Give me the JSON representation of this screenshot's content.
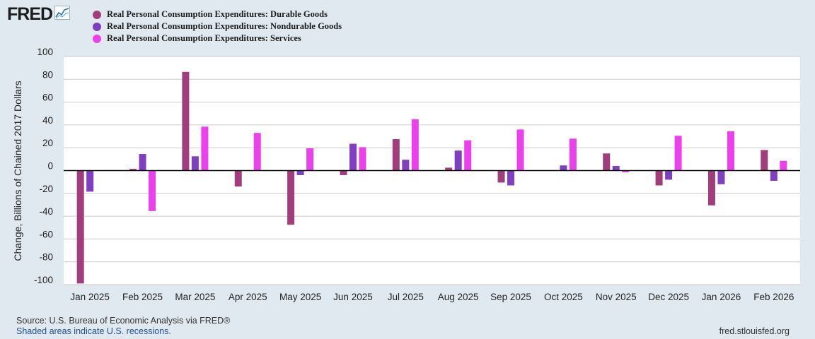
{
  "header": {
    "logo_text": "FRED",
    "logo_icon": "chart-line-icon"
  },
  "legend": [
    {
      "label": "Real Personal Consumption Expenditures: Durable Goods",
      "color": "#a13d7d"
    },
    {
      "label": "Real Personal Consumption Expenditures: Nondurable Goods",
      "color": "#7f3fc0"
    },
    {
      "label": "Real Personal Consumption Expenditures: Services",
      "color": "#ed40ed"
    }
  ],
  "chart_data": {
    "type": "bar",
    "title": "",
    "xlabel": "",
    "ylabel": "Change, Billions of Chained 2017 Dollars",
    "ylim": [
      -100,
      100
    ],
    "yticks": [
      100,
      80,
      60,
      40,
      20,
      0,
      -20,
      -40,
      -60,
      -80,
      -100
    ],
    "categories": [
      "Jan 2025",
      "Feb 2025",
      "Mar 2025",
      "Apr 2025",
      "May 2025",
      "Jun 2025",
      "Jul 2025",
      "Aug 2025",
      "Sep 2025",
      "Oct 2025",
      "Nov 2025",
      "Dec 2025",
      "Jan 2026",
      "Feb 2026"
    ],
    "series": [
      {
        "name": "Real Personal Consumption Expenditures: Durable Goods",
        "color": "#a13d7d",
        "values": [
          -99,
          1.5,
          86.5,
          -14,
          -47.5,
          -4,
          27.5,
          2.5,
          -10.5,
          0,
          15,
          -13,
          -30.5,
          18
        ]
      },
      {
        "name": "Real Personal Consumption Expenditures: Nondurable Goods",
        "color": "#7f3fc0",
        "values": [
          -18.5,
          14.5,
          12.5,
          0,
          -4,
          23.5,
          9.5,
          17.5,
          -13,
          4.5,
          4,
          -8,
          -12,
          -9
        ]
      },
      {
        "name": "Real Personal Consumption Expenditures: Services",
        "color": "#ed40ed",
        "values": [
          0,
          -35.5,
          38.5,
          33,
          19.5,
          20.5,
          45,
          26.5,
          36,
          28,
          -1.5,
          30.5,
          34.5,
          8.5
        ]
      }
    ]
  },
  "footer": {
    "source": "Source: U.S. Bureau of Economic Analysis via FRED®",
    "shading_note": "Shaded areas indicate U.S. recessions.",
    "site": "fred.stlouisfed.org"
  }
}
